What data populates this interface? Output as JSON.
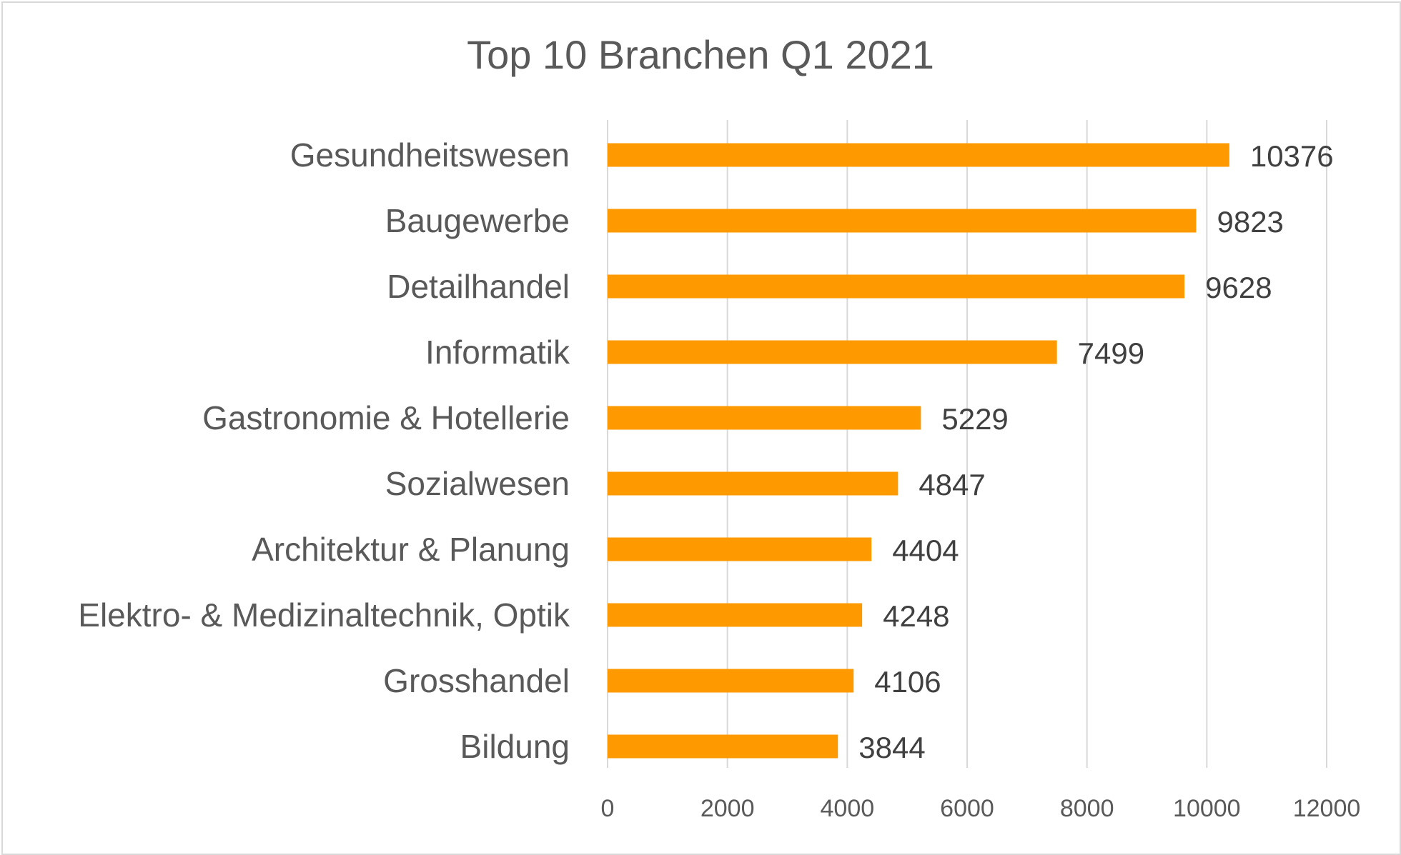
{
  "chart_data": {
    "type": "bar",
    "orientation": "horizontal",
    "title": "Top 10 Branchen Q1 2021",
    "categories": [
      "Gesundheitswesen",
      "Baugewerbe",
      "Detailhandel",
      "Informatik",
      "Gastronomie & Hotellerie",
      "Sozialwesen",
      "Architektur & Planung",
      "Elektro- & Medizinaltechnik, Optik",
      "Grosshandel",
      "Bildung"
    ],
    "values": [
      10376,
      9823,
      9628,
      7499,
      5229,
      4847,
      4404,
      4248,
      4106,
      3844
    ],
    "xlabel": "",
    "ylabel": "",
    "xlim": [
      0,
      12000
    ],
    "xticks": [
      0,
      2000,
      4000,
      6000,
      8000,
      10000,
      12000
    ],
    "grid": true,
    "legend": "none",
    "bar_color": "#ff9900"
  }
}
